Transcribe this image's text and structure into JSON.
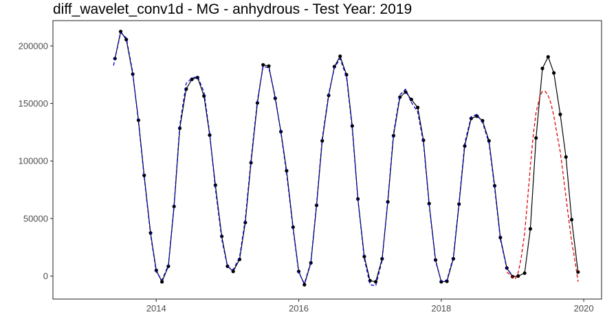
{
  "chart_data": {
    "type": "line",
    "title": "diff_wavelet_conv1d - MG - anhydrous - Test Year: 2019",
    "xlabel": "",
    "ylabel": "",
    "xlim": [
      2012.55,
      2020.25
    ],
    "ylim": [
      -20000,
      222000
    ],
    "x_ticks": [
      2014,
      2016,
      2018,
      2020
    ],
    "x_tick_labels": [
      "2014",
      "2016",
      "2018",
      "2020"
    ],
    "y_ticks": [
      0,
      50000,
      100000,
      150000,
      200000
    ],
    "y_tick_labels": [
      "0",
      "50000",
      "100000",
      "150000",
      "200000"
    ],
    "grid": false,
    "series": [
      {
        "color": "#000000",
        "style": "solid",
        "markers": true,
        "points": [
          [
            2013.42,
            189000
          ],
          [
            2013.5,
            212500
          ],
          [
            2013.58,
            205500
          ],
          [
            2013.67,
            175500
          ],
          [
            2013.75,
            135500
          ],
          [
            2013.83,
            87500
          ],
          [
            2013.92,
            37500
          ],
          [
            2014.0,
            5000
          ],
          [
            2014.08,
            -5000
          ],
          [
            2014.17,
            8500
          ],
          [
            2014.25,
            60500
          ],
          [
            2014.33,
            128500
          ],
          [
            2014.42,
            162500
          ],
          [
            2014.5,
            171000
          ],
          [
            2014.58,
            172500
          ],
          [
            2014.67,
            156500
          ],
          [
            2014.75,
            122500
          ],
          [
            2014.83,
            79000
          ],
          [
            2014.92,
            34500
          ],
          [
            2015.0,
            8500
          ],
          [
            2015.08,
            4000
          ],
          [
            2015.17,
            14500
          ],
          [
            2015.25,
            46500
          ],
          [
            2015.33,
            98500
          ],
          [
            2015.42,
            150500
          ],
          [
            2015.5,
            183500
          ],
          [
            2015.58,
            182500
          ],
          [
            2015.67,
            154500
          ],
          [
            2015.75,
            125500
          ],
          [
            2015.83,
            91500
          ],
          [
            2015.92,
            42500
          ],
          [
            2016.0,
            4000
          ],
          [
            2016.08,
            -7500
          ],
          [
            2016.17,
            11500
          ],
          [
            2016.25,
            61500
          ],
          [
            2016.33,
            117500
          ],
          [
            2016.42,
            157000
          ],
          [
            2016.5,
            182000
          ],
          [
            2016.58,
            191000
          ],
          [
            2016.67,
            175000
          ],
          [
            2016.75,
            130500
          ],
          [
            2016.83,
            67000
          ],
          [
            2016.92,
            17000
          ],
          [
            2017.0,
            -4000
          ],
          [
            2017.08,
            -5000
          ],
          [
            2017.17,
            15000
          ],
          [
            2017.25,
            64500
          ],
          [
            2017.33,
            122000
          ],
          [
            2017.42,
            155500
          ],
          [
            2017.5,
            160000
          ],
          [
            2017.58,
            153500
          ],
          [
            2017.67,
            146500
          ],
          [
            2017.75,
            118000
          ],
          [
            2017.83,
            63000
          ],
          [
            2017.92,
            14000
          ],
          [
            2018.0,
            -5000
          ],
          [
            2018.08,
            -4500
          ],
          [
            2018.17,
            15000
          ],
          [
            2018.25,
            62500
          ],
          [
            2018.33,
            113000
          ],
          [
            2018.42,
            137000
          ],
          [
            2018.5,
            139000
          ],
          [
            2018.58,
            135000
          ],
          [
            2018.67,
            117500
          ],
          [
            2018.75,
            78500
          ],
          [
            2018.83,
            33500
          ],
          [
            2018.92,
            7000
          ],
          [
            2019.0,
            -500
          ],
          [
            2019.08,
            0
          ],
          [
            2019.17,
            2500
          ],
          [
            2019.25,
            41000
          ],
          [
            2019.33,
            120000
          ],
          [
            2019.42,
            180500
          ],
          [
            2019.5,
            190500
          ],
          [
            2019.58,
            176500
          ],
          [
            2019.67,
            140500
          ],
          [
            2019.75,
            103500
          ],
          [
            2019.83,
            49000
          ],
          [
            2019.92,
            3500
          ]
        ]
      },
      {
        "color": "#0000cc",
        "style": "dashed",
        "markers": false,
        "points": [
          [
            2013.4,
            183000
          ],
          [
            2013.5,
            211500
          ],
          [
            2013.58,
            207000
          ],
          [
            2013.67,
            177000
          ],
          [
            2013.75,
            134000
          ],
          [
            2013.83,
            86000
          ],
          [
            2013.92,
            36000
          ],
          [
            2014.0,
            3500
          ],
          [
            2014.08,
            -3500
          ],
          [
            2014.17,
            9500
          ],
          [
            2014.25,
            62000
          ],
          [
            2014.33,
            131000
          ],
          [
            2014.42,
            167500
          ],
          [
            2014.5,
            172000
          ],
          [
            2014.58,
            173500
          ],
          [
            2014.67,
            160000
          ],
          [
            2014.75,
            124000
          ],
          [
            2014.83,
            76000
          ],
          [
            2014.92,
            32000
          ],
          [
            2015.0,
            8000
          ],
          [
            2015.08,
            5500
          ],
          [
            2015.17,
            16500
          ],
          [
            2015.25,
            49500
          ],
          [
            2015.33,
            101000
          ],
          [
            2015.42,
            152500
          ],
          [
            2015.5,
            182000
          ],
          [
            2015.58,
            181000
          ],
          [
            2015.67,
            156000
          ],
          [
            2015.75,
            124500
          ],
          [
            2015.83,
            89000
          ],
          [
            2015.92,
            41000
          ],
          [
            2016.0,
            3000
          ],
          [
            2016.08,
            -6500
          ],
          [
            2016.17,
            12500
          ],
          [
            2016.25,
            63000
          ],
          [
            2016.33,
            119500
          ],
          [
            2016.42,
            158500
          ],
          [
            2016.5,
            181000
          ],
          [
            2016.58,
            189000
          ],
          [
            2016.67,
            173000
          ],
          [
            2016.75,
            128500
          ],
          [
            2016.83,
            66500
          ],
          [
            2016.92,
            15000
          ],
          [
            2017.0,
            -7500
          ],
          [
            2017.08,
            -8500
          ],
          [
            2017.17,
            13500
          ],
          [
            2017.25,
            66000
          ],
          [
            2017.33,
            124000
          ],
          [
            2017.42,
            157500
          ],
          [
            2017.5,
            162500
          ],
          [
            2017.58,
            151000
          ],
          [
            2017.67,
            142500
          ],
          [
            2017.75,
            116000
          ],
          [
            2017.83,
            62000
          ],
          [
            2017.92,
            13000
          ],
          [
            2018.0,
            -4500
          ],
          [
            2018.08,
            -3500
          ],
          [
            2018.17,
            16500
          ],
          [
            2018.25,
            64000
          ],
          [
            2018.33,
            115500
          ],
          [
            2018.42,
            138500
          ],
          [
            2018.5,
            140500
          ],
          [
            2018.58,
            133500
          ],
          [
            2018.67,
            115500
          ],
          [
            2018.75,
            76500
          ],
          [
            2018.83,
            32000
          ],
          [
            2018.92,
            6500
          ],
          [
            2019.0,
            500
          ]
        ]
      },
      {
        "color": "#e00000",
        "style": "dashed",
        "markers": false,
        "points": [
          [
            2018.92,
            3500
          ],
          [
            2019.0,
            -1000
          ],
          [
            2019.04,
            -2500
          ],
          [
            2019.08,
            3000
          ],
          [
            2019.12,
            15000
          ],
          [
            2019.17,
            37000
          ],
          [
            2019.21,
            65000
          ],
          [
            2019.25,
            95000
          ],
          [
            2019.29,
            122000
          ],
          [
            2019.33,
            142000
          ],
          [
            2019.38,
            155000
          ],
          [
            2019.42,
            160500
          ],
          [
            2019.46,
            160500
          ],
          [
            2019.5,
            157000
          ],
          [
            2019.54,
            150000
          ],
          [
            2019.58,
            139000
          ],
          [
            2019.62,
            125000
          ],
          [
            2019.67,
            108000
          ],
          [
            2019.71,
            89000
          ],
          [
            2019.75,
            69000
          ],
          [
            2019.79,
            49000
          ],
          [
            2019.83,
            30000
          ],
          [
            2019.88,
            12000
          ],
          [
            2019.92,
            -5000
          ]
        ]
      }
    ]
  }
}
